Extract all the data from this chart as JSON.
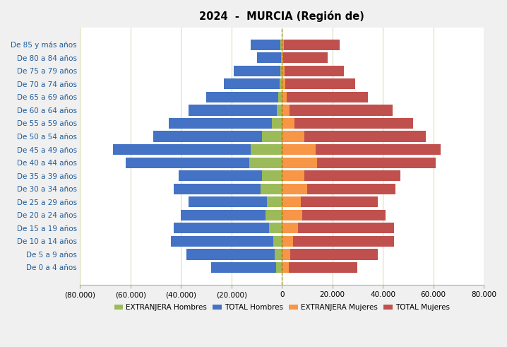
{
  "title": "2024  -  MURCIA (Región de)",
  "age_groups": [
    "De 85 y más años",
    "De 80 a 84 años",
    "De 75 a 79 años",
    "De 70 a 74 años",
    "De 65 a 69 años",
    "De 60 a 64 años",
    "De 55 a 59 años",
    "De 50 a 54 años",
    "De 45 a 49 años",
    "De 40 a 44 años",
    "De 35 a 39 años",
    "De 30 a 34 años",
    "De 25 a 29 años",
    "De 20 a 24 años",
    "De 15 a 19 años",
    "De 10 a 14 años",
    "De 5 a 9 años",
    "De 0 a 4 años"
  ],
  "total_hombres": [
    12500,
    10000,
    19000,
    23000,
    30000,
    37000,
    45000,
    51000,
    67000,
    62000,
    41000,
    43000,
    37000,
    40000,
    43000,
    44000,
    38000,
    28000
  ],
  "extran_hombres": [
    500,
    350,
    750,
    1000,
    1400,
    2000,
    4000,
    8000,
    12500,
    13000,
    8000,
    8500,
    6000,
    6500,
    5000,
    3500,
    2800,
    2200
  ],
  "total_mujeres": [
    23000,
    18000,
    24500,
    29000,
    34000,
    44000,
    52000,
    57000,
    63000,
    61000,
    47000,
    45000,
    38000,
    41000,
    44500,
    44500,
    38000,
    30000
  ],
  "extran_mujeres": [
    700,
    550,
    1000,
    1400,
    1800,
    2900,
    5000,
    9000,
    13500,
    14000,
    9000,
    10000,
    7500,
    8000,
    6500,
    4500,
    3300,
    2700
  ],
  "color_total_hombres": "#4472C4",
  "color_extran_hombres": "#9BBB59",
  "color_total_mujeres": "#C0504D",
  "color_extran_mujeres": "#F79646",
  "xlim_min": -80000,
  "xlim_max": 80000,
  "xticks": [
    -80000,
    -60000,
    -40000,
    -20000,
    0,
    20000,
    40000,
    60000,
    80000
  ],
  "xtick_labels": [
    "(80.000)",
    "(60.000)",
    "(40.000)",
    "(20.000)",
    "0",
    "20.000",
    "40.000",
    "60.000",
    "80.000"
  ],
  "legend_labels": [
    "EXTRANJERA Hombres",
    "TOTAL Hombres",
    "EXTRANJERA Mujeres",
    "TOTAL Mujeres"
  ],
  "label_color": "#1F5C99",
  "bar_height": 0.82,
  "title_fontsize": 10.5,
  "tick_label_fontsize": 7.5,
  "legend_fontsize": 7.5,
  "grid_color": "#D4D4AA",
  "center_line_color": "#808000",
  "bg_color": "#FFFFFF",
  "fig_bg_color": "#F0F0F0"
}
